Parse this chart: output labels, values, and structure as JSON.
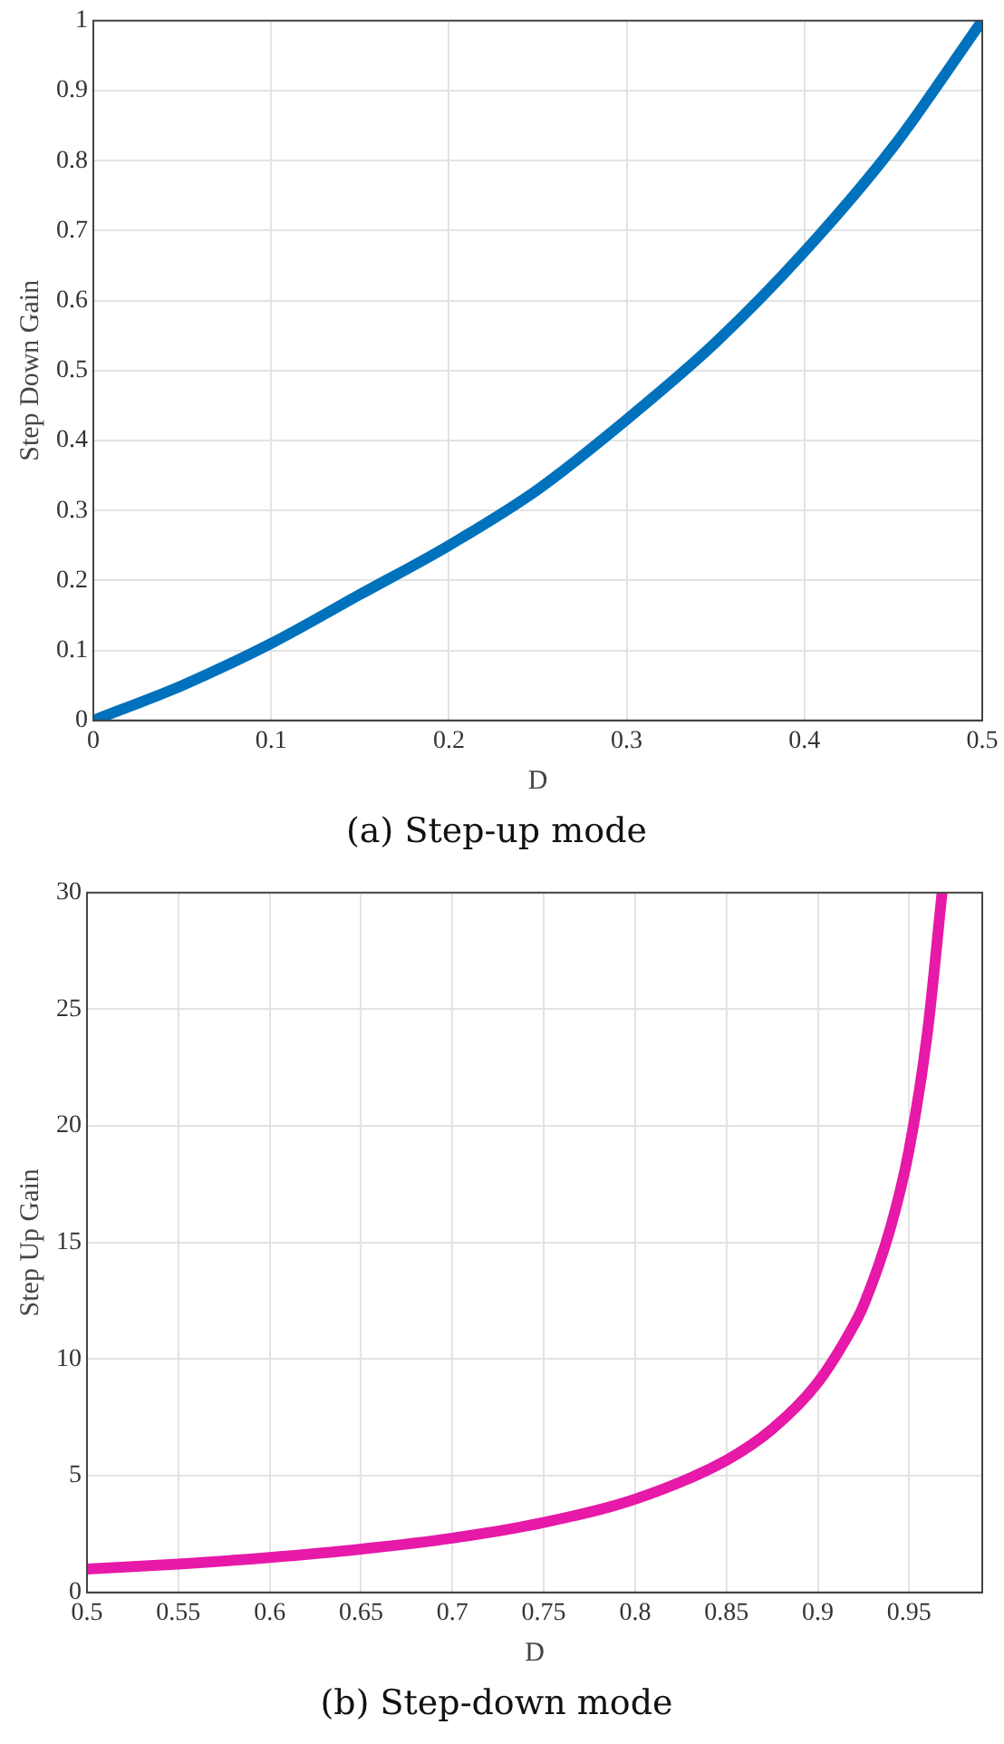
{
  "chart_data": [
    {
      "type": "line",
      "title": "(a) Step-up mode",
      "xlabel": "D",
      "ylabel": "Step Down Gain",
      "x": [
        0,
        0.05,
        0.1,
        0.15,
        0.2,
        0.25,
        0.3,
        0.35,
        0.4,
        0.45,
        0.5
      ],
      "series": [
        {
          "color": "#0072bd",
          "values": [
            0,
            0.05,
            0.11,
            0.18,
            0.25,
            0.33,
            0.43,
            0.54,
            0.67,
            0.82,
            1
          ]
        }
      ],
      "xlim": [
        0,
        0.5
      ],
      "xticks": [
        0,
        0.1,
        0.2,
        0.3,
        0.4,
        0.5
      ],
      "ylim": [
        0,
        1
      ],
      "yticks": [
        0,
        0.1,
        0.2,
        0.3,
        0.4,
        0.5,
        0.6,
        0.7,
        0.8,
        0.9,
        1
      ],
      "grid": true,
      "legend": false,
      "marker": "none",
      "line_style": "solid"
    },
    {
      "type": "line",
      "title": "(b) Step-down mode",
      "xlabel": "D",
      "ylabel": "Step Up Gain",
      "x": [
        0.5,
        0.55,
        0.6,
        0.65,
        0.7,
        0.75,
        0.8,
        0.85,
        0.875,
        0.9,
        0.92,
        0.925,
        0.94,
        0.95,
        0.96,
        0.968
      ],
      "series": [
        {
          "color": "#e619a8",
          "values": [
            1,
            1.22,
            1.5,
            1.86,
            2.33,
            3,
            4,
            5.67,
            7,
            9,
            11.5,
            12.3,
            15.7,
            19,
            24,
            30
          ]
        }
      ],
      "xlim": [
        0.5,
        0.99
      ],
      "xticks": [
        0.5,
        0.55,
        0.6,
        0.65,
        0.7,
        0.75,
        0.8,
        0.85,
        0.9,
        0.95
      ],
      "ylim": [
        0,
        30
      ],
      "yticks": [
        0,
        5,
        10,
        15,
        20,
        25,
        30
      ],
      "grid": true,
      "legend": false,
      "marker": "none",
      "line_style": "solid"
    }
  ]
}
